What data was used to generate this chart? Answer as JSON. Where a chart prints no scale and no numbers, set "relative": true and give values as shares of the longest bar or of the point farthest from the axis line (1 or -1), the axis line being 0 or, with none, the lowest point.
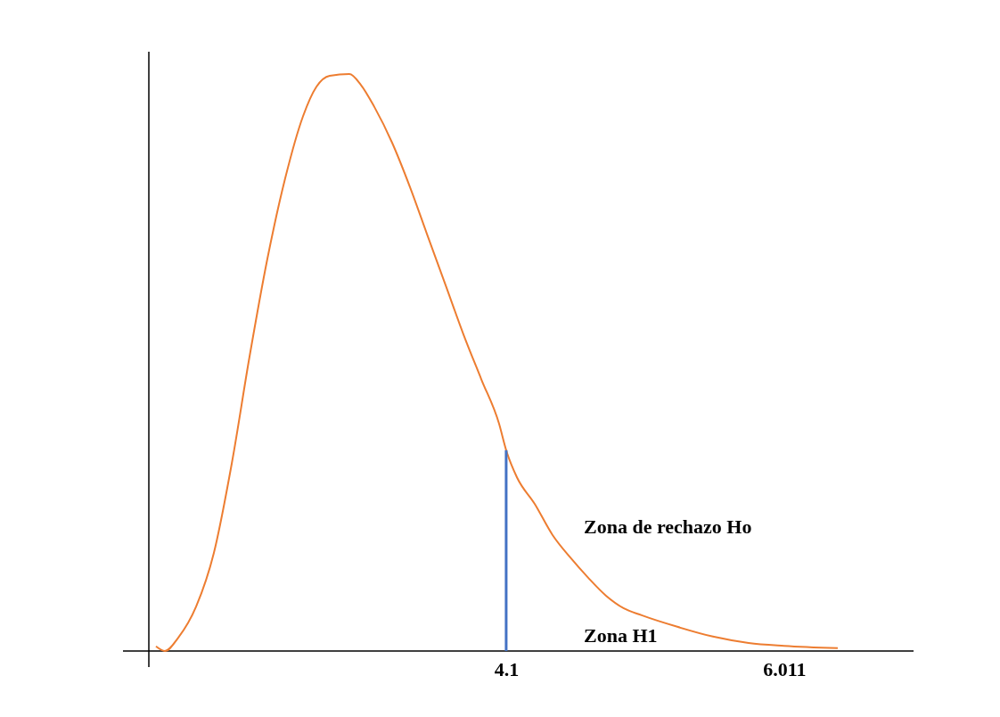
{
  "chart_data": {
    "type": "line",
    "relative": true,
    "xlim": [
      1.644,
      6.9
    ],
    "xticks": [
      4.1,
      6.011
    ],
    "series": [
      {
        "color": "#ed7d31",
        "x": [
          1.693,
          1.754,
          1.846,
          1.969,
          2.091,
          2.214,
          2.336,
          2.459,
          2.581,
          2.704,
          2.796,
          2.887,
          3.022,
          3.102,
          3.194,
          3.316,
          3.439,
          3.561,
          3.684,
          3.806,
          3.929,
          4.051,
          4.1,
          4.174,
          4.296,
          4.419,
          4.541,
          4.664,
          4.786,
          4.909,
          5.031,
          5.276,
          5.521,
          5.766,
          6.011,
          6.379
        ],
        "values": [
          0.008,
          0,
          0.023,
          0.077,
          0.17,
          0.325,
          0.51,
          0.68,
          0.819,
          0.927,
          0.978,
          0.997,
          1,
          0.981,
          0.943,
          0.881,
          0.804,
          0.719,
          0.634,
          0.549,
          0.471,
          0.394,
          0.348,
          0.301,
          0.255,
          0.201,
          0.162,
          0.127,
          0.096,
          0.074,
          0.062,
          0.042,
          0.025,
          0.014,
          0.009,
          0.005
        ]
      }
    ],
    "ref_lines": [
      {
        "axis": "x",
        "value": 4.1,
        "color": "#4472c4"
      }
    ],
    "annotations": [
      "Zona de rechazo Ho",
      "Zona H1"
    ]
  }
}
